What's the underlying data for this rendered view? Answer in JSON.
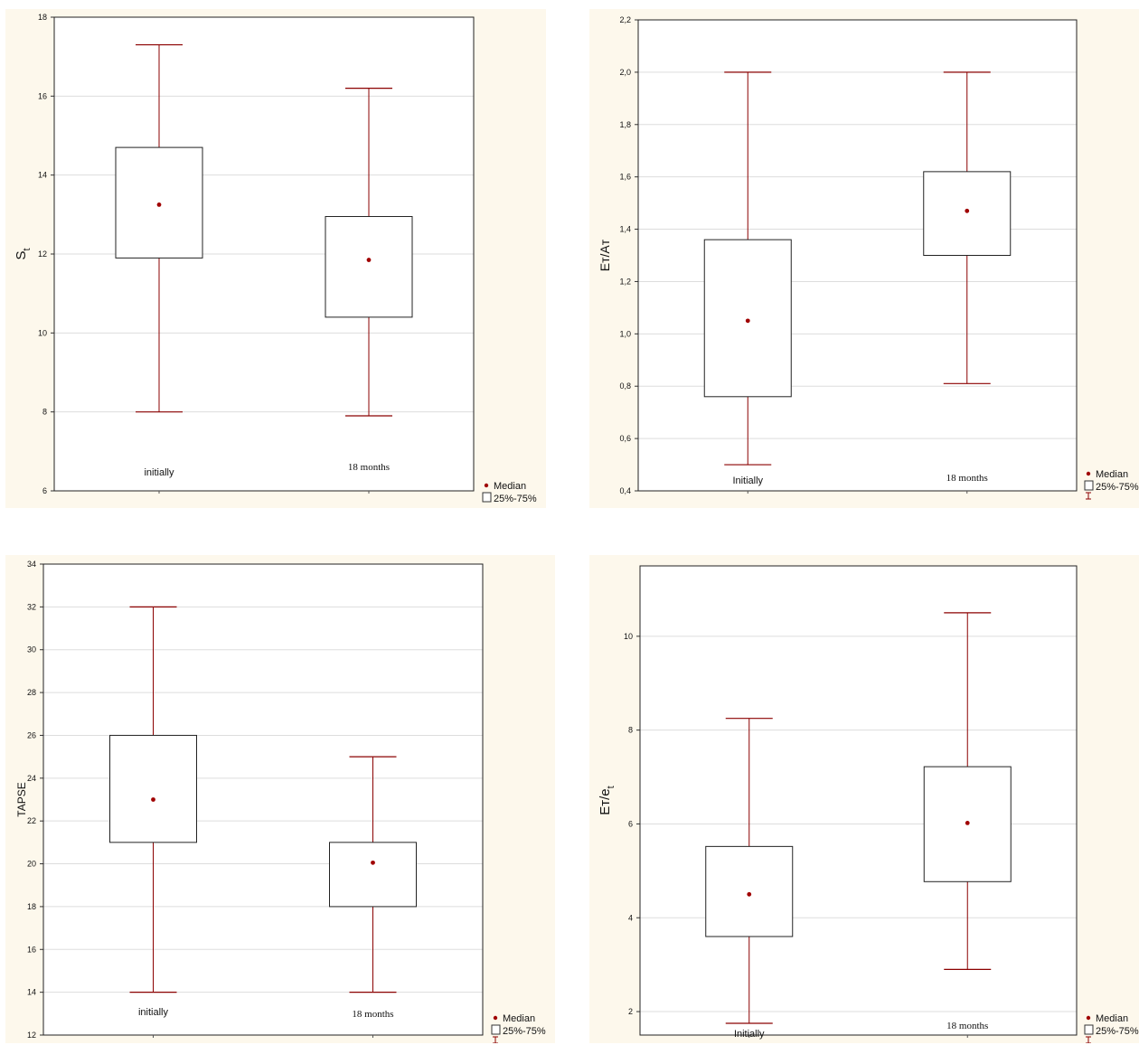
{
  "colors": {
    "panel_bg": "#fdf8ec",
    "plot_bg": "#ffffff",
    "stroke": "#8b0000",
    "grid": "#dddddd",
    "text": "#111111"
  },
  "legend": {
    "median_label": "Median",
    "box_label": "25%-75%"
  },
  "chart_data": [
    {
      "type": "box",
      "ylabel": "S",
      "ylabel_sub": "t",
      "ylim": [
        6,
        18
      ],
      "yticks": [
        "6",
        "8",
        "10",
        "12",
        "14",
        "16",
        "18"
      ],
      "grid": true,
      "categories": [
        "initially",
        "18 months"
      ],
      "boxes": [
        {
          "name": "initially",
          "min": 8.0,
          "q1": 11.9,
          "median": 13.25,
          "q3": 14.7,
          "max": 17.3
        },
        {
          "name": "18 months",
          "min": 7.9,
          "q1": 10.4,
          "median": 11.85,
          "q3": 12.95,
          "max": 16.2
        }
      ],
      "legend_whisker": false
    },
    {
      "type": "box",
      "ylabel": "Eт/Aт",
      "ylabel_sub": "",
      "ylim": [
        0.4,
        2.2
      ],
      "yticks": [
        "0,4",
        "0,6",
        "0,8",
        "1,0",
        "1,2",
        "1,4",
        "1,6",
        "1,8",
        "2,0",
        "2,2"
      ],
      "grid": true,
      "categories": [
        "Initially",
        "18 months"
      ],
      "boxes": [
        {
          "name": "Initially",
          "min": 0.5,
          "q1": 0.76,
          "median": 1.05,
          "q3": 1.36,
          "max": 2.0
        },
        {
          "name": "18 months",
          "min": 0.81,
          "q1": 1.3,
          "median": 1.47,
          "q3": 1.62,
          "max": 2.0
        }
      ],
      "legend_whisker": true
    },
    {
      "type": "box",
      "ylabel": "TAPSE",
      "ylabel_sub": "",
      "ylim": [
        12,
        34
      ],
      "yticks": [
        "12",
        "14",
        "16",
        "18",
        "20",
        "22",
        "24",
        "26",
        "28",
        "30",
        "32",
        "34"
      ],
      "grid": true,
      "categories": [
        "initially",
        "18 months"
      ],
      "boxes": [
        {
          "name": "initially",
          "min": 14,
          "q1": 21,
          "median": 23,
          "q3": 26,
          "max": 32
        },
        {
          "name": "18 months",
          "min": 14,
          "q1": 18,
          "median": 20.05,
          "q3": 21,
          "max": 25
        }
      ],
      "legend_whisker": true
    },
    {
      "type": "box",
      "ylabel": "Eт/e",
      "ylabel_sub": "t",
      "ylim": [
        1.5,
        11.5
      ],
      "yticks": [
        "2",
        "4",
        "6",
        "8",
        "10"
      ],
      "grid": true,
      "categories": [
        "Initially",
        "18 months"
      ],
      "boxes": [
        {
          "name": "Initially",
          "min": 1.75,
          "q1": 3.6,
          "median": 4.5,
          "q3": 5.52,
          "max": 8.25
        },
        {
          "name": "18 months",
          "min": 2.9,
          "q1": 4.77,
          "median": 6.02,
          "q3": 7.22,
          "max": 10.5
        }
      ],
      "legend_whisker": true
    }
  ]
}
